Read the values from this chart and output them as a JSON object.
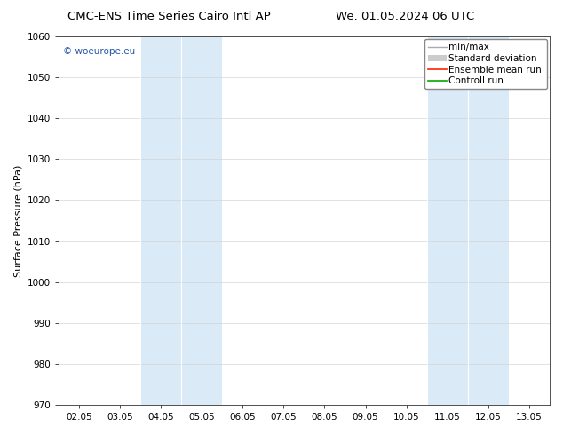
{
  "title_left": "CMC-ENS Time Series Cairo Intl AP",
  "title_right": "We. 01.05.2024 06 UTC",
  "ylabel": "Surface Pressure (hPa)",
  "ylim": [
    970,
    1060
  ],
  "yticks": [
    970,
    980,
    990,
    1000,
    1010,
    1020,
    1030,
    1040,
    1050,
    1060
  ],
  "xtick_labels": [
    "02.05",
    "03.05",
    "04.05",
    "05.05",
    "06.05",
    "07.05",
    "08.05",
    "09.05",
    "10.05",
    "11.05",
    "12.05",
    "13.05"
  ],
  "band_ranges": [
    [
      2.0,
      3.0
    ],
    [
      3.0,
      4.0
    ],
    [
      9.0,
      10.0
    ],
    [
      10.0,
      11.0
    ]
  ],
  "watermark": "© woeurope.eu",
  "watermark_color": "#2255aa",
  "band_color": "#daeaf7",
  "background_color": "#ffffff",
  "grid_color": "#cccccc",
  "title_fontsize": 9.5,
  "axis_fontsize": 8,
  "tick_fontsize": 7.5,
  "legend_fontsize": 7.5,
  "minmax_color": "#aaaaaa",
  "stddev_color": "#cccccc",
  "mean_color": "#ff2200",
  "control_color": "#00aa00"
}
